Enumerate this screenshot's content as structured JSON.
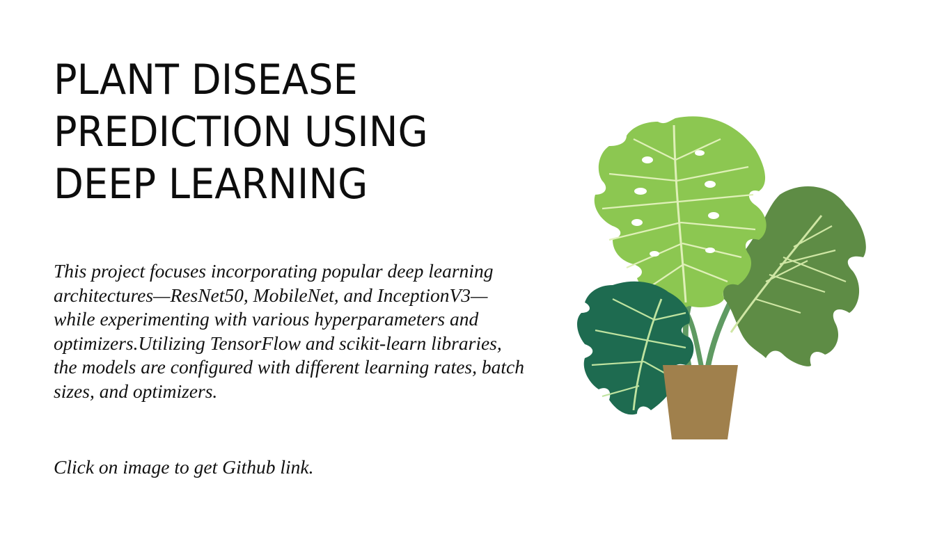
{
  "title": {
    "lines": [
      "PLANT DISEASE",
      "PREDICTION USING",
      "DEEP LEARNING"
    ]
  },
  "description": {
    "lines": [
      "This project focuses incorporating popular deep learning",
      "architectures—ResNet50, MobileNet, and InceptionV3—",
      "while experimenting with various hyperparameters and",
      "optimizers.Utilizing TensorFlow and scikit-learn libraries,",
      "the models are configured with different learning rates, batch",
      "sizes, and optimizers."
    ]
  },
  "cta": {
    "text": "Click on image to get Github link."
  },
  "plant_image": {
    "icon": "monstera-plant-illustration",
    "colors": {
      "leaf_light": "#8cc751",
      "leaf_medium": "#5e8c45",
      "leaf_dark": "#1e6b50",
      "vein_light": "#dff0b8",
      "stem": "#5f9a62",
      "pot": "#a0804c"
    }
  }
}
